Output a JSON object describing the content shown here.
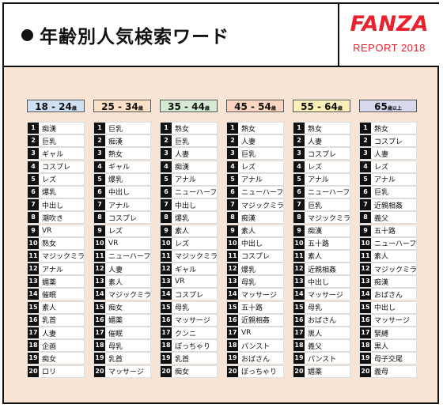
{
  "header": {
    "title": "年齢別人気検索ワード",
    "brand": "FANZA",
    "report": "REPORT 2018"
  },
  "columns": [
    {
      "label": "18 - 24",
      "suffix": "歳",
      "color": "#cfe0f3",
      "items": [
        "痴漢",
        "巨乳",
        "ギャル",
        "コスプレ",
        "レズ",
        "爆乳",
        "中出し",
        "潮吹き",
        "VR",
        "熟女",
        "マジックミラー号",
        "アナル",
        "媚薬",
        "催眠",
        "素人",
        "乳首",
        "人妻",
        "企画",
        "痴女",
        "ロリ"
      ]
    },
    {
      "label": "25 - 34",
      "suffix": "歳",
      "color": "#fde0c8",
      "items": [
        "巨乳",
        "痴漢",
        "熟女",
        "ギャル",
        "爆乳",
        "中出し",
        "アナル",
        "コスプレ",
        "レズ",
        "VR",
        "ニューハーフ",
        "人妻",
        "素人",
        "マジックミラー号",
        "痴女",
        "媚薬",
        "催眠",
        "母乳",
        "乳首",
        "マッサージ"
      ]
    },
    {
      "label": "35 - 44",
      "suffix": "歳",
      "color": "#d4ead2",
      "items": [
        "熟女",
        "巨乳",
        "人妻",
        "痴漢",
        "アナル",
        "ニューハーフ",
        "中出し",
        "爆乳",
        "素人",
        "レズ",
        "マジックミラー号",
        "ギャル",
        "VR",
        "コスプレ",
        "母乳",
        "マッサージ",
        "クンニ",
        "ぽっちゃり",
        "乳首",
        "痴女"
      ]
    },
    {
      "label": "45 - 54",
      "suffix": "歳",
      "color": "#fbd5bf",
      "items": [
        "熟女",
        "人妻",
        "巨乳",
        "レズ",
        "アナル",
        "ニューハーフ",
        "マジックミラー号",
        "痴漢",
        "素人",
        "中出し",
        "コスプレ",
        "爆乳",
        "母乳",
        "マッサージ",
        "五十路",
        "近親相姦",
        "VR",
        "パンスト",
        "おばさん",
        "ぽっちゃり"
      ]
    },
    {
      "label": "55 - 64",
      "suffix": "歳",
      "color": "#fbf0b7",
      "items": [
        "熟女",
        "人妻",
        "コスプレ",
        "レズ",
        "アナル",
        "ニューハーフ",
        "巨乳",
        "マジックミラー号",
        "痴漢",
        "五十路",
        "素人",
        "近親相姦",
        "中出し",
        "マッサージ",
        "母乳",
        "おばさん",
        "黒人",
        "義父",
        "パンスト",
        "媚薬"
      ]
    },
    {
      "label": "65",
      "suffix": "歳以上",
      "color": "#d8d8ee",
      "items": [
        "熟女",
        "コスプレ",
        "人妻",
        "レズ",
        "アナル",
        "巨乳",
        "近親相姦",
        "義父",
        "五十路",
        "ニューハーフ",
        "素人",
        "マジックミラー号",
        "痴漢",
        "おばさん",
        "中出し",
        "マッサージ",
        "緊縛",
        "黒人",
        "母子交尾",
        "義母"
      ]
    }
  ]
}
